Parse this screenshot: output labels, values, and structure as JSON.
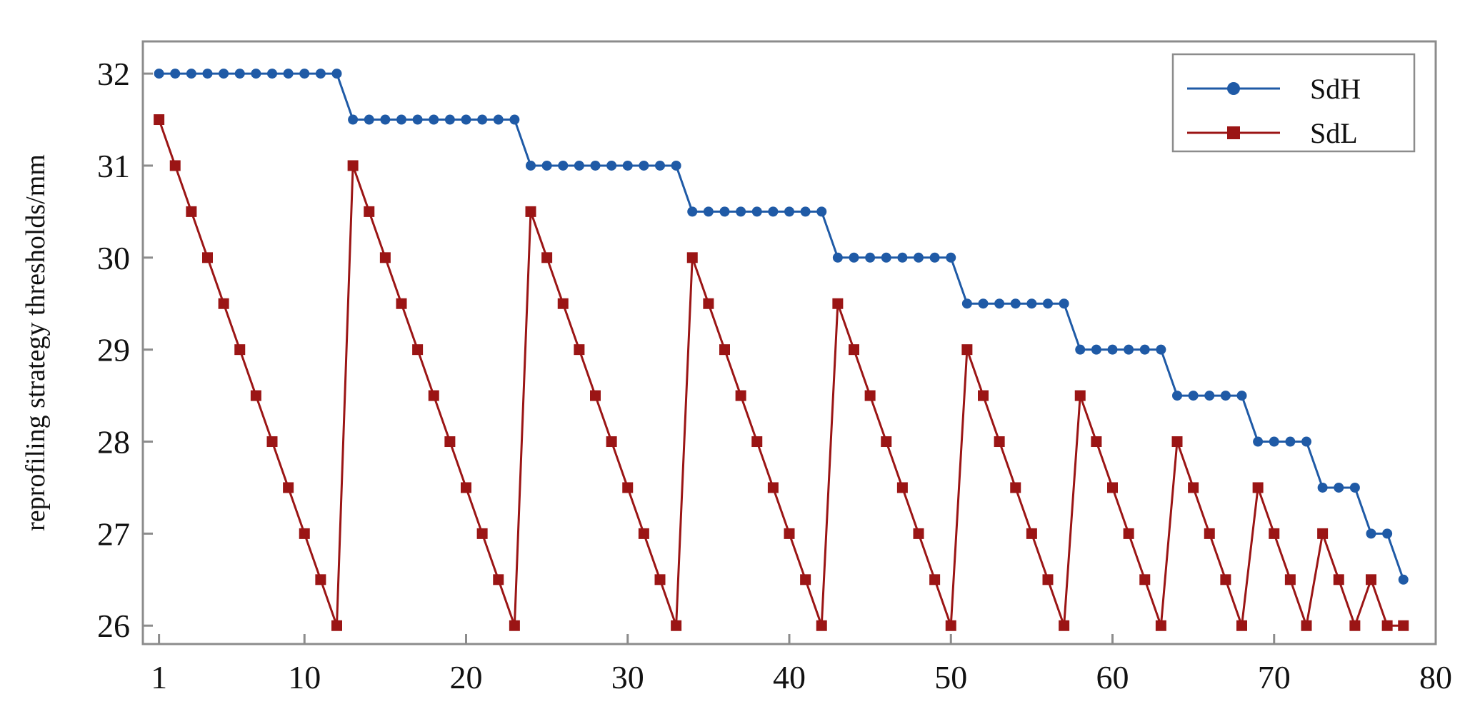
{
  "chart_data": {
    "type": "line",
    "title": "",
    "xlabel": "",
    "ylabel": "reprofiling strategy thresholds/mm",
    "xlim": [
      0,
      80
    ],
    "ylim": [
      25.8,
      32.35
    ],
    "x_ticks": [
      1,
      10,
      20,
      30,
      40,
      50,
      60,
      70,
      80
    ],
    "y_ticks": [
      26,
      27,
      28,
      29,
      30,
      31,
      32
    ],
    "grid": false,
    "legend_position": "top-right",
    "series": [
      {
        "name": "SdH",
        "color": "#1f5aa6",
        "marker": "circle",
        "x": [
          1,
          2,
          3,
          4,
          5,
          6,
          7,
          8,
          9,
          10,
          11,
          12,
          13,
          14,
          15,
          16,
          17,
          18,
          19,
          20,
          21,
          22,
          23,
          24,
          25,
          26,
          27,
          28,
          29,
          30,
          31,
          32,
          33,
          34,
          35,
          36,
          37,
          38,
          39,
          40,
          41,
          42,
          43,
          44,
          45,
          46,
          47,
          48,
          49,
          50,
          51,
          52,
          53,
          54,
          55,
          56,
          57,
          58,
          59,
          60,
          61,
          62,
          63,
          64,
          65,
          66,
          67,
          68,
          69,
          70,
          71,
          72,
          73,
          74,
          75,
          76,
          77,
          78
        ],
        "values": [
          32,
          32,
          32,
          32,
          32,
          32,
          32,
          32,
          32,
          32,
          32,
          32,
          31.5,
          31.5,
          31.5,
          31.5,
          31.5,
          31.5,
          31.5,
          31.5,
          31.5,
          31.5,
          31.5,
          31,
          31,
          31,
          31,
          31,
          31,
          31,
          31,
          31,
          31,
          30.5,
          30.5,
          30.5,
          30.5,
          30.5,
          30.5,
          30.5,
          30.5,
          30.5,
          30,
          30,
          30,
          30,
          30,
          30,
          30,
          30,
          29.5,
          29.5,
          29.5,
          29.5,
          29.5,
          29.5,
          29.5,
          29,
          29,
          29,
          29,
          29,
          29,
          28.5,
          28.5,
          28.5,
          28.5,
          28.5,
          28,
          28,
          28,
          28,
          27.5,
          27.5,
          27.5,
          27,
          27,
          26.5
        ]
      },
      {
        "name": "SdL",
        "color": "#9b1515",
        "marker": "square",
        "x": [
          1,
          2,
          3,
          4,
          5,
          6,
          7,
          8,
          9,
          10,
          11,
          12,
          13,
          14,
          15,
          16,
          17,
          18,
          19,
          20,
          21,
          22,
          23,
          24,
          25,
          26,
          27,
          28,
          29,
          30,
          31,
          32,
          33,
          34,
          35,
          36,
          37,
          38,
          39,
          40,
          41,
          42,
          43,
          44,
          45,
          46,
          47,
          48,
          49,
          50,
          51,
          52,
          53,
          54,
          55,
          56,
          57,
          58,
          59,
          60,
          61,
          62,
          63,
          64,
          65,
          66,
          67,
          68,
          69,
          70,
          71,
          72,
          73,
          74,
          75,
          76,
          77,
          78
        ],
        "values": [
          31.5,
          31,
          30.5,
          30,
          29.5,
          29,
          28.5,
          28,
          27.5,
          27,
          26.5,
          26,
          31,
          30.5,
          30,
          29.5,
          29,
          28.5,
          28,
          27.5,
          27,
          26.5,
          26,
          30.5,
          30,
          29.5,
          29,
          28.5,
          28,
          27.5,
          27,
          26.5,
          26,
          30,
          29.5,
          29,
          28.5,
          28,
          27.5,
          27,
          26.5,
          26,
          29.5,
          29,
          28.5,
          28,
          27.5,
          27,
          26.5,
          26,
          29,
          28.5,
          28,
          27.5,
          27,
          26.5,
          26,
          28.5,
          28,
          27.5,
          27,
          26.5,
          26,
          28,
          27.5,
          27,
          26.5,
          26,
          27.5,
          27,
          26.5,
          26,
          27,
          26.5,
          26,
          26.5,
          26,
          26
        ]
      }
    ]
  }
}
